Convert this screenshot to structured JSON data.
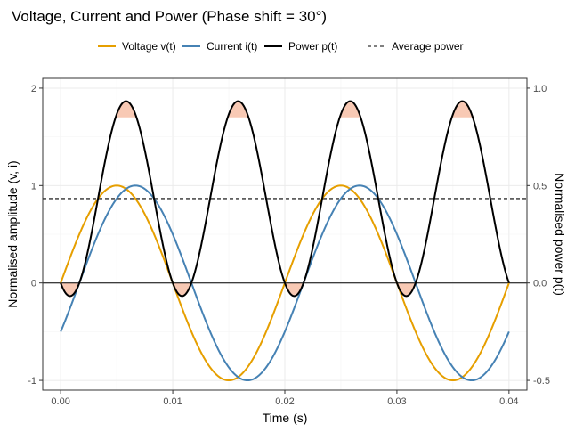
{
  "chart_data": {
    "type": "line",
    "title": "Voltage, Current and Power (Phase shift = 30°)",
    "xlabel": "Time (s)",
    "ylabel": "Normalised amplitude (v, i)",
    "y2label": "Normalised power p(t)",
    "xlim": [
      -0.0016,
      0.0416
    ],
    "ylim": [
      -1.1,
      2.1
    ],
    "y2lim": [
      -0.55,
      1.05
    ],
    "x_ticks": [
      0.0,
      0.01,
      0.02,
      0.03,
      0.04
    ],
    "x_tick_labels": [
      "0.00",
      "0.01",
      "0.02",
      "0.03",
      "0.04"
    ],
    "y_ticks": [
      -1,
      0,
      1,
      2
    ],
    "y_tick_labels": [
      "-1",
      "0",
      "1",
      "2"
    ],
    "y2_ticks": [
      -0.5,
      0.0,
      0.5,
      1.0
    ],
    "y2_tick_labels": [
      "-0.5",
      "0.0",
      "0.5",
      "1.0"
    ],
    "grid": true,
    "legend_position": "top",
    "frequency_hz": 50,
    "phase_shift_deg": 30,
    "series": [
      {
        "name": "Voltage v(t)",
        "axis": "left",
        "color": "#E69F00",
        "style": "solid",
        "function": "sin(2*pi*50*t)"
      },
      {
        "name": "Current i(t)",
        "axis": "left",
        "color": "#4682B4",
        "style": "solid",
        "function": "sin(2*pi*50*t - 30deg)"
      },
      {
        "name": "Power p(t)",
        "axis": "right",
        "color": "#000000",
        "style": "solid",
        "function": "v(t)*i(t)"
      },
      {
        "name": "Average power",
        "axis": "right",
        "color": "#000000",
        "style": "dashed",
        "value": 0.433
      }
    ],
    "highlight_color": "#F4A582"
  }
}
